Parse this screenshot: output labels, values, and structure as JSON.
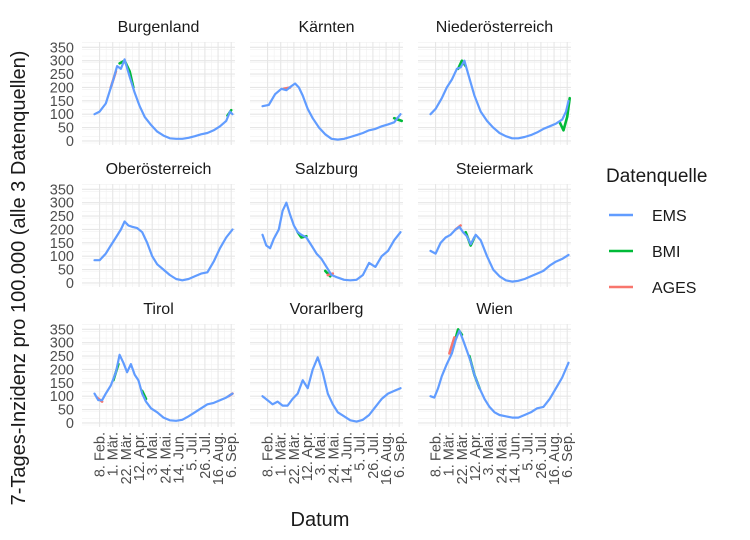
{
  "chart_data": {
    "type": "line",
    "title": "",
    "xlabel": "Datum",
    "ylabel": "7-Tages-Inzidenz pro 100.000 (alle 3 Datenquellen)",
    "y_ticks": [
      0,
      50,
      100,
      150,
      200,
      250,
      300,
      350
    ],
    "y_tick_labels": [
      "0",
      "50",
      "100",
      "150",
      "200",
      "250",
      "300",
      "350"
    ],
    "ylim": [
      -15,
      370
    ],
    "xlim": [
      -20,
      224
    ],
    "x_unit": "days since 2021-01-31",
    "x_ticks": [
      8,
      29,
      50,
      71,
      92,
      113,
      134,
      155,
      176,
      197,
      218
    ],
    "x_tick_labels": [
      "8. Feb.",
      "1. Mär.",
      "22. Mär.",
      "12. Apr.",
      "3. Mai.",
      "24. Mai.",
      "14. Jun.",
      "5. Jul.",
      "26. Jul.",
      "16. Aug.",
      "6. Sep."
    ],
    "legend": {
      "title": "Datenquelle",
      "position": "right",
      "entries": [
        {
          "name": "EMS",
          "color": "#619CFF"
        },
        {
          "name": "BMI",
          "color": "#00BA38"
        },
        {
          "name": "AGES",
          "color": "#F8766D"
        }
      ]
    },
    "grid": true,
    "panels": [
      {
        "name": "Burgenland",
        "x": [
          0,
          8,
          18,
          24,
          30,
          36,
          42,
          48,
          56,
          64,
          72,
          80,
          90,
          100,
          110,
          120,
          130,
          140,
          150,
          160,
          170,
          180,
          190,
          200,
          210,
          216,
          220
        ],
        "y": [
          100,
          110,
          140,
          185,
          230,
          280,
          270,
          305,
          240,
          180,
          130,
          90,
          60,
          35,
          20,
          10,
          8,
          8,
          12,
          18,
          25,
          30,
          40,
          55,
          75,
          110,
          100
        ],
        "bmi": [
          {
            "x": [
              40,
              48,
              56,
              62
            ],
            "y": [
              290,
              300,
              260,
              200
            ]
          },
          {
            "x": [
              212,
              218
            ],
            "y": [
              95,
              115
            ]
          }
        ],
        "ages": [
          {
            "x": [
              26,
              34
            ],
            "y": [
              200,
              260
            ]
          }
        ]
      },
      {
        "name": "Kärnten",
        "x": [
          0,
          10,
          20,
          30,
          38,
          46,
          52,
          58,
          64,
          72,
          80,
          90,
          100,
          110,
          120,
          130,
          140,
          150,
          160,
          170,
          180,
          190,
          200,
          210,
          220
        ],
        "y": [
          130,
          135,
          175,
          195,
          190,
          205,
          215,
          200,
          170,
          120,
          85,
          50,
          25,
          8,
          5,
          8,
          15,
          22,
          30,
          40,
          45,
          55,
          62,
          70,
          100
        ],
        "bmi": [
          {
            "x": [
              210,
              216,
              222
            ],
            "y": [
              85,
              80,
              75
            ]
          }
        ],
        "ages": [
          {
            "x": [
              34,
              44
            ],
            "y": [
              195,
              200
            ]
          }
        ]
      },
      {
        "name": "Niederösterreich",
        "x": [
          0,
          8,
          18,
          26,
          34,
          42,
          48,
          54,
          60,
          70,
          80,
          90,
          100,
          110,
          120,
          130,
          140,
          150,
          160,
          170,
          180,
          190,
          200,
          210,
          216,
          220
        ],
        "y": [
          100,
          120,
          160,
          200,
          230,
          270,
          275,
          300,
          250,
          170,
          110,
          75,
          50,
          30,
          18,
          10,
          10,
          15,
          22,
          32,
          45,
          55,
          65,
          80,
          110,
          150
        ],
        "bmi": [
          {
            "x": [
              44,
              50,
              56
            ],
            "y": [
              270,
              300,
              280
            ]
          },
          {
            "x": [
              206,
              212,
              218,
              222
            ],
            "y": [
              70,
              40,
              90,
              160
            ]
          }
        ],
        "ages": []
      },
      {
        "name": "Oberösterreich",
        "x": [
          0,
          8,
          18,
          26,
          34,
          42,
          48,
          54,
          60,
          68,
          76,
          84,
          92,
          100,
          110,
          120,
          130,
          140,
          150,
          160,
          170,
          180,
          190,
          200,
          210,
          220
        ],
        "y": [
          85,
          85,
          110,
          140,
          170,
          200,
          230,
          215,
          210,
          205,
          190,
          150,
          100,
          70,
          50,
          30,
          15,
          10,
          15,
          25,
          35,
          40,
          80,
          130,
          170,
          200
        ],
        "bmi": [],
        "ages": []
      },
      {
        "name": "Salzburg",
        "x": [
          0,
          6,
          12,
          18,
          26,
          32,
          38,
          44,
          50,
          56,
          62,
          70,
          78,
          86,
          94,
          102,
          110,
          120,
          130,
          140,
          150,
          160,
          170,
          180,
          190,
          200,
          210,
          220
        ],
        "y": [
          180,
          140,
          130,
          165,
          200,
          270,
          300,
          255,
          215,
          190,
          180,
          170,
          140,
          110,
          90,
          60,
          30,
          20,
          12,
          10,
          12,
          30,
          75,
          60,
          100,
          120,
          160,
          190
        ],
        "bmi": [
          {
            "x": [
              56,
              62,
              70
            ],
            "y": [
              190,
              170,
              175
            ]
          },
          {
            "x": [
              100,
              108
            ],
            "y": [
              45,
              25
            ]
          }
        ],
        "ages": [
          {
            "x": [
              104,
              112
            ],
            "y": [
              30,
              35
            ]
          }
        ]
      },
      {
        "name": "Steiermark",
        "x": [
          0,
          8,
          16,
          24,
          32,
          40,
          46,
          52,
          58,
          64,
          72,
          80,
          90,
          100,
          110,
          120,
          130,
          140,
          150,
          160,
          170,
          180,
          190,
          200,
          210,
          220
        ],
        "y": [
          120,
          110,
          150,
          170,
          180,
          200,
          210,
          190,
          175,
          145,
          180,
          160,
          100,
          50,
          25,
          10,
          5,
          8,
          15,
          25,
          35,
          45,
          65,
          80,
          90,
          105
        ],
        "bmi": [
          {
            "x": [
              56,
              64,
              70
            ],
            "y": [
              190,
              140,
              170
            ]
          }
        ],
        "ages": [
          {
            "x": [
              40,
              48
            ],
            "y": [
              200,
              215
            ]
          }
        ]
      },
      {
        "name": "Tirol",
        "x": [
          0,
          6,
          12,
          18,
          26,
          34,
          40,
          46,
          52,
          58,
          64,
          70,
          76,
          82,
          90,
          100,
          110,
          120,
          130,
          140,
          150,
          160,
          170,
          180,
          190,
          200,
          210,
          220
        ],
        "y": [
          110,
          85,
          85,
          110,
          140,
          190,
          255,
          225,
          190,
          220,
          180,
          160,
          110,
          80,
          55,
          40,
          20,
          10,
          8,
          12,
          25,
          40,
          55,
          70,
          75,
          85,
          95,
          110
        ],
        "bmi": [
          {
            "x": [
              30,
              38
            ],
            "y": [
              160,
              220
            ]
          },
          {
            "x": [
              76,
              82
            ],
            "y": [
              120,
              90
            ]
          }
        ],
        "ages": [
          {
            "x": [
              4,
              12
            ],
            "y": [
              95,
              80
            ]
          },
          {
            "x": [
              214,
              220
            ],
            "y": [
              100,
              110
            ]
          }
        ]
      },
      {
        "name": "Vorarlberg",
        "x": [
          0,
          8,
          16,
          24,
          32,
          40,
          48,
          56,
          64,
          72,
          80,
          88,
          96,
          104,
          112,
          120,
          130,
          140,
          150,
          160,
          170,
          180,
          190,
          200,
          210,
          220
        ],
        "y": [
          100,
          85,
          70,
          80,
          65,
          65,
          90,
          110,
          160,
          130,
          200,
          245,
          190,
          110,
          70,
          40,
          25,
          10,
          5,
          12,
          30,
          60,
          90,
          110,
          120,
          130
        ],
        "bmi": [],
        "ages": []
      },
      {
        "name": "Wien",
        "x": [
          0,
          6,
          12,
          18,
          26,
          34,
          40,
          46,
          52,
          58,
          64,
          70,
          78,
          86,
          94,
          102,
          110,
          120,
          130,
          140,
          150,
          160,
          170,
          180,
          190,
          200,
          210,
          220
        ],
        "y": [
          100,
          95,
          130,
          175,
          220,
          260,
          310,
          345,
          310,
          270,
          230,
          180,
          130,
          90,
          60,
          40,
          30,
          25,
          20,
          20,
          30,
          40,
          55,
          60,
          90,
          130,
          170,
          225
        ],
        "bmi": [
          {
            "x": [
              38,
              44,
              50
            ],
            "y": [
              300,
              350,
              330
            ]
          },
          {
            "x": [
              62,
              70,
              78
            ],
            "y": [
              250,
              180,
              130
            ]
          }
        ],
        "ages": [
          {
            "x": [
              30,
              38
            ],
            "y": [
              260,
              320
            ]
          }
        ]
      }
    ]
  }
}
